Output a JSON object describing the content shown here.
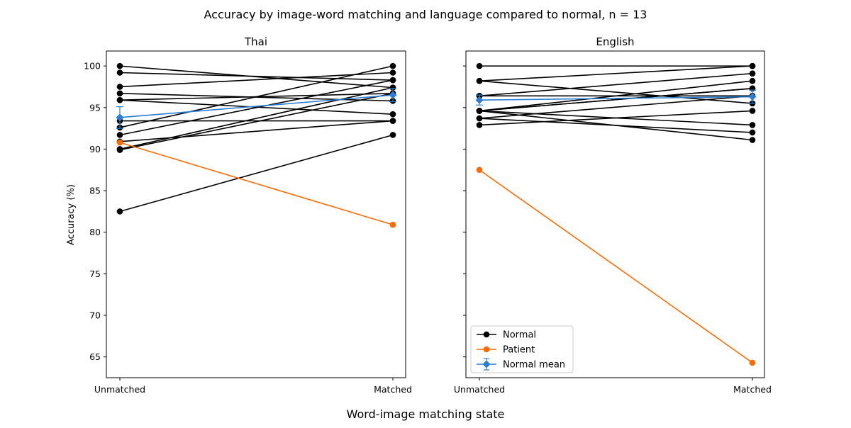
{
  "figure": {
    "title": "Accuracy by image-word matching and language compared to normal, n = 13",
    "xlabel": "Word-image matching state",
    "ylabel": "Accuracy (%)"
  },
  "colors": {
    "normal": "#000000",
    "patient": "#ff6a00",
    "normal_mean": "#2a7fd4"
  },
  "legend": {
    "placement": "lower-left of right panel",
    "entries": [
      "Normal",
      "Patient",
      "Normal mean"
    ]
  },
  "chart_data": [
    {
      "type": "line",
      "title": "Thai",
      "categories": [
        "Unmatched",
        "Matched"
      ],
      "ylim": [
        62.5,
        101.8
      ],
      "yticks": [
        65,
        70,
        75,
        80,
        85,
        90,
        95,
        100
      ],
      "grid": false,
      "normal_series": [
        [
          100.0,
          97.4
        ],
        [
          99.2,
          98.3
        ],
        [
          97.5,
          99.2
        ],
        [
          96.7,
          95.8
        ],
        [
          95.9,
          96.7
        ],
        [
          95.9,
          94.2
        ],
        [
          93.4,
          93.4
        ],
        [
          92.6,
          100.0
        ],
        [
          91.7,
          98.3
        ],
        [
          90.9,
          93.4
        ],
        [
          90.0,
          97.4
        ],
        [
          89.9,
          96.7
        ],
        [
          82.5,
          91.7
        ]
      ],
      "patient": [
        90.8,
        80.9
      ],
      "normal_mean": [
        93.8,
        96.5
      ],
      "normal_mean_error": [
        1.3,
        0.8
      ]
    },
    {
      "type": "line",
      "title": "English",
      "categories": [
        "Unmatched",
        "Matched"
      ],
      "ylim": [
        62.5,
        101.8
      ],
      "yticks": [
        65,
        70,
        75,
        80,
        85,
        90,
        95,
        100
      ],
      "grid": false,
      "normal_series": [
        [
          100.0,
          100.0
        ],
        [
          98.2,
          100.0
        ],
        [
          98.2,
          95.5
        ],
        [
          96.4,
          99.1
        ],
        [
          96.4,
          96.4
        ],
        [
          94.6,
          98.2
        ],
        [
          94.6,
          97.3
        ],
        [
          94.6,
          92.9
        ],
        [
          94.6,
          91.1
        ],
        [
          93.7,
          92.0
        ],
        [
          93.7,
          96.4
        ],
        [
          92.9,
          94.6
        ],
        [
          94.6,
          97.3
        ]
      ],
      "patient": [
        87.5,
        64.3
      ],
      "normal_mean": [
        95.9,
        96.3
      ],
      "normal_mean_error": [
        0.6,
        0.8
      ]
    }
  ]
}
